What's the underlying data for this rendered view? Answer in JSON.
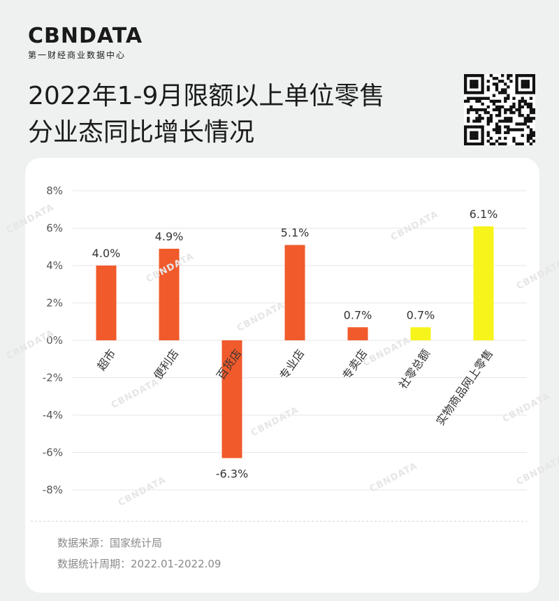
{
  "logo": {
    "main": "CBNDATA",
    "sub": "第一财经商业数据中心"
  },
  "title_lines": [
    "2022年1-9月限额以上单位零售",
    "分业态同比增长情况"
  ],
  "footer": {
    "source": "数据来源：国家统计局",
    "period": "数据统计周期：2022.01-2022.09"
  },
  "watermark_text": "CBNDATA",
  "colors": {
    "orange": "#f15a2b",
    "yellow": "#f7f41c",
    "axis_text": "#555555",
    "grid": "#e6e6e6"
  },
  "chart_data": {
    "type": "bar",
    "categories": [
      "超市",
      "便利店",
      "百货店",
      "专业店",
      "专卖店",
      "社零总额",
      "实物商品网上零售"
    ],
    "values": [
      4.0,
      4.9,
      -6.3,
      5.1,
      0.7,
      0.7,
      6.1
    ],
    "value_labels": [
      "4.0%",
      "4.9%",
      "-6.3%",
      "5.1%",
      "0.7%",
      "0.7%",
      "6.1%"
    ],
    "bar_colors": [
      "#f15a2b",
      "#f15a2b",
      "#f15a2b",
      "#f15a2b",
      "#f15a2b",
      "#f7f41c",
      "#f7f41c"
    ],
    "ylim": [
      -8,
      8
    ],
    "yticks": [
      8,
      6,
      4,
      2,
      0,
      -2,
      -4,
      -6,
      -8
    ],
    "ytick_labels": [
      "8%",
      "6%",
      "4%",
      "2%",
      "0%",
      "-2%",
      "-4%",
      "-6%",
      "-8%"
    ],
    "grid": true,
    "xlabel": "",
    "ylabel": ""
  }
}
